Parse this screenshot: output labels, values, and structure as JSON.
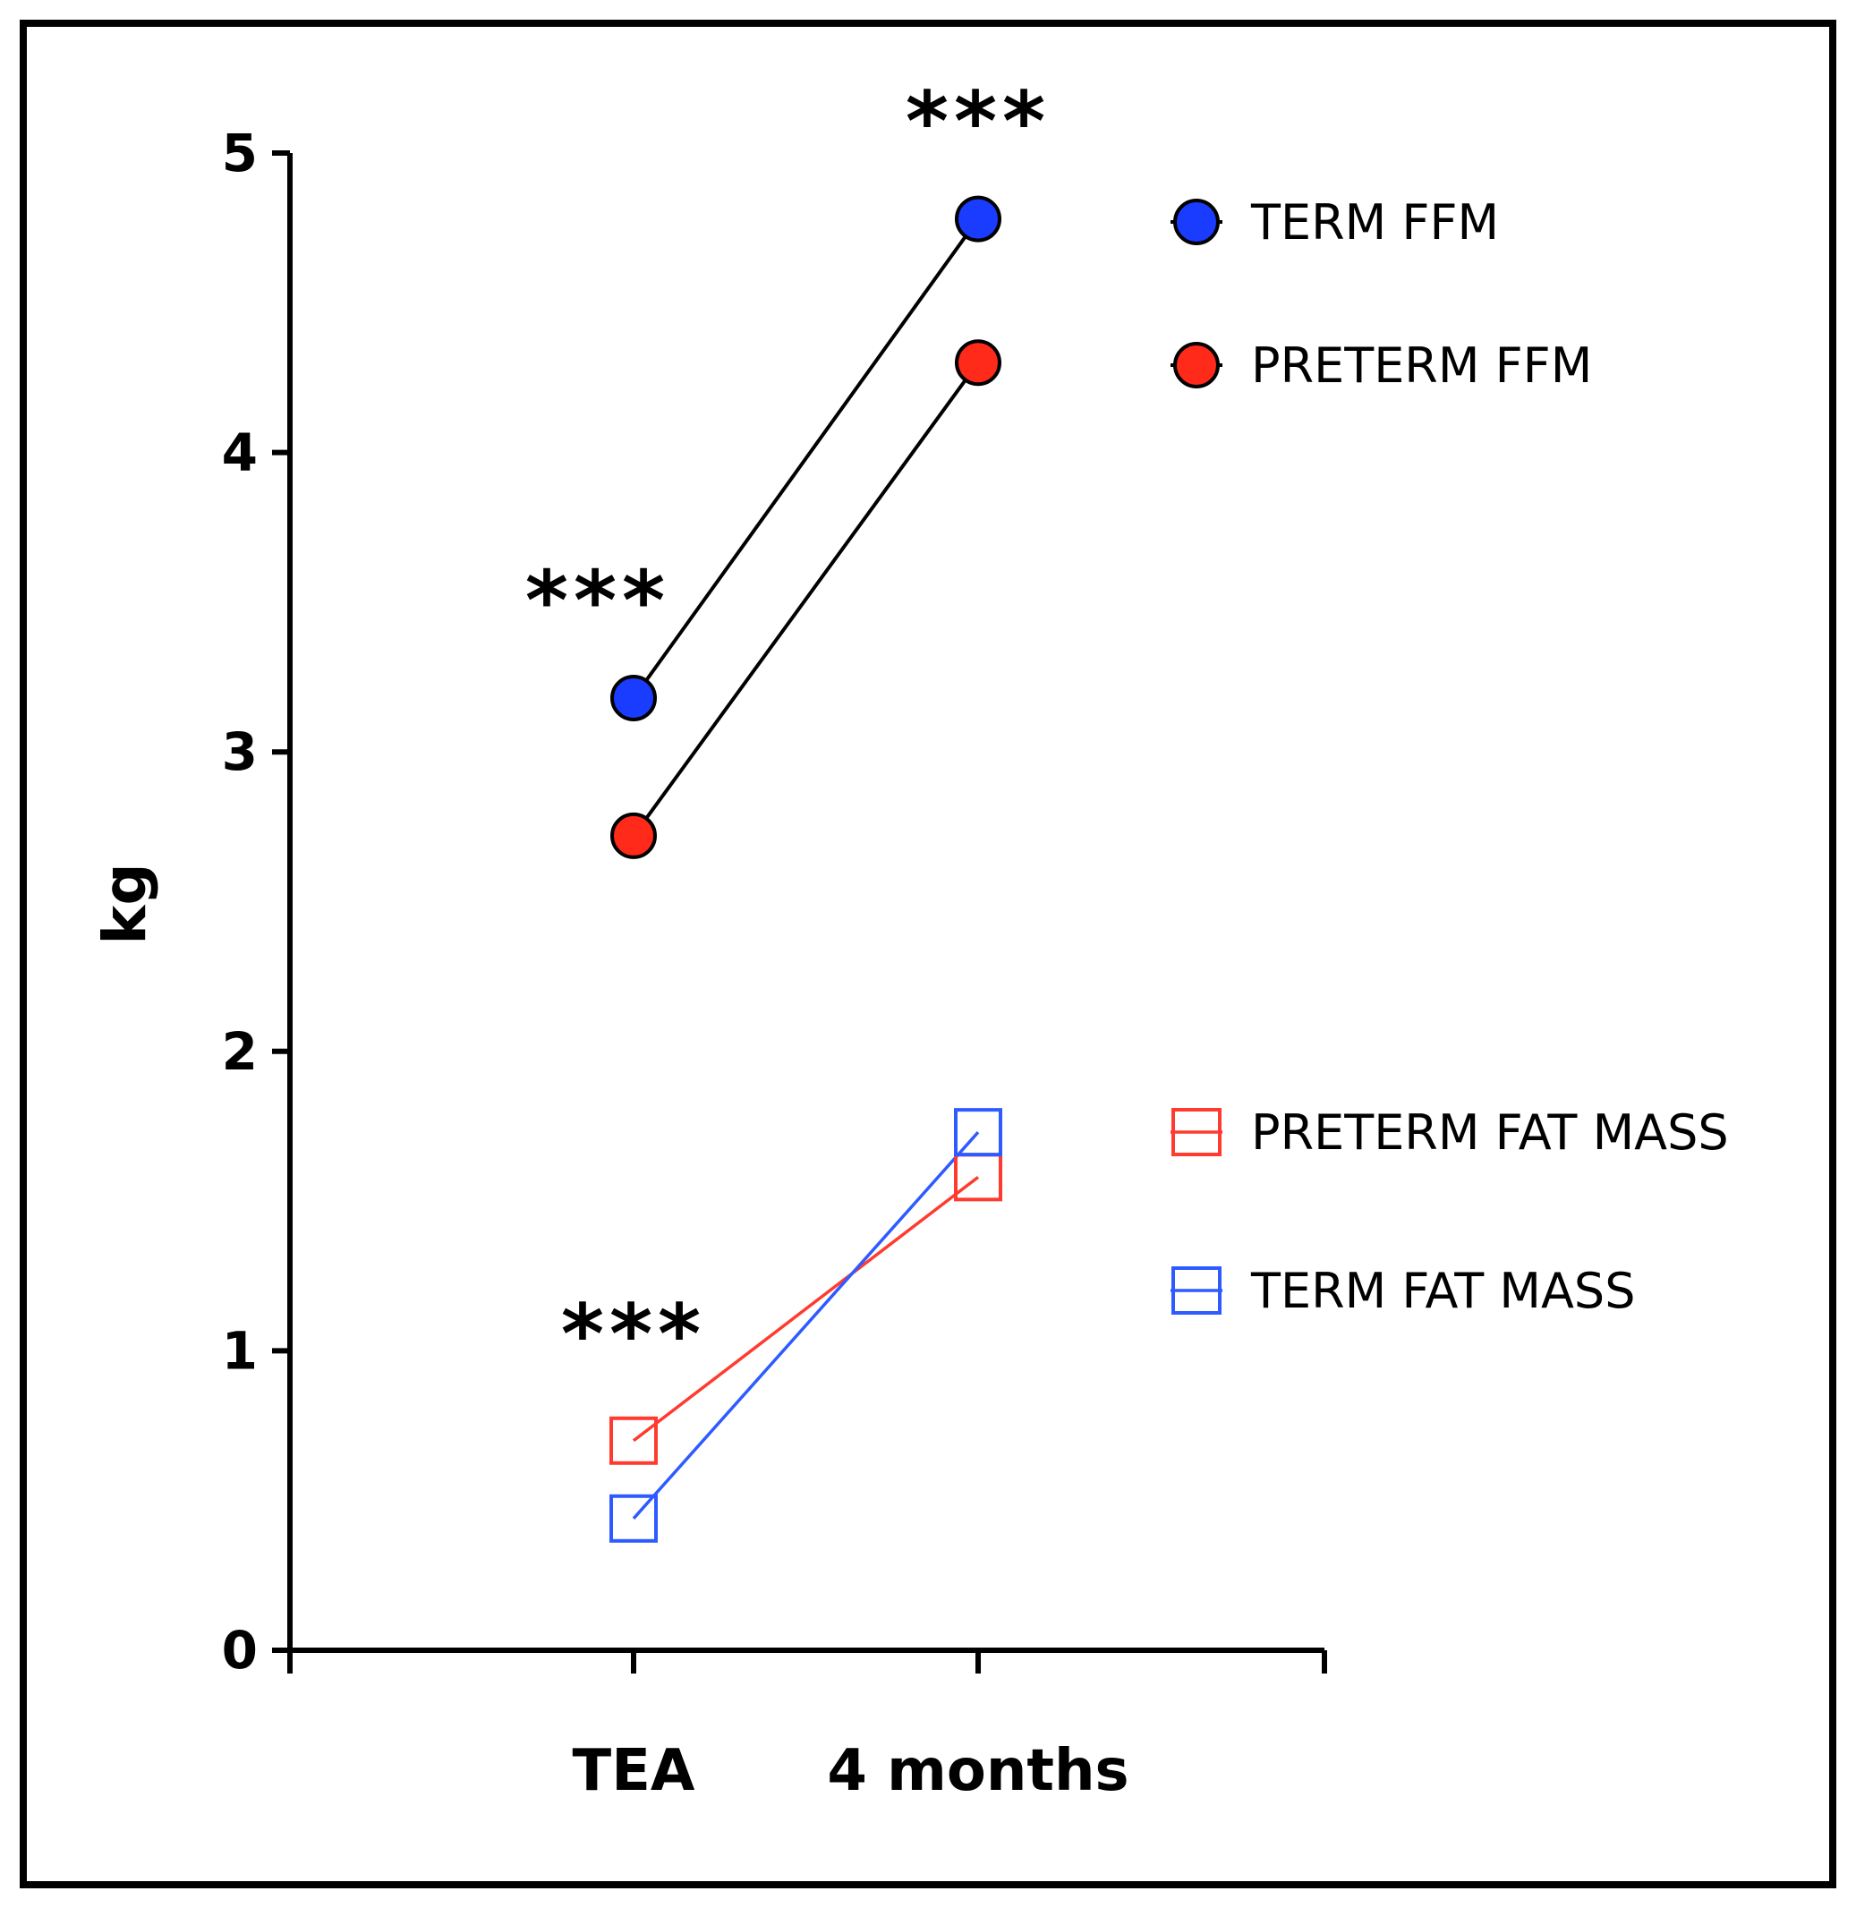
{
  "chart_data": {
    "type": "line",
    "title": "",
    "xlabel": "",
    "ylabel": "kg",
    "categories": [
      "TEA",
      "4 months"
    ],
    "ylim": [
      0,
      5
    ],
    "yticks": [
      0,
      1,
      2,
      3,
      4,
      5
    ],
    "grid": false,
    "legend_position": "right",
    "series": [
      {
        "name": "TERM FFM",
        "values": [
          3.18,
          4.78
        ],
        "color": "#1a3cff",
        "marker": "circle-filled"
      },
      {
        "name": "PRETERM FFM",
        "values": [
          2.72,
          4.3
        ],
        "color": "#ff2a1a",
        "marker": "circle-filled"
      },
      {
        "name": "PRETERM FAT MASS",
        "values": [
          0.7,
          1.58
        ],
        "color": "#ff3b2f",
        "marker": "square-open"
      },
      {
        "name": "TERM FAT MASS",
        "values": [
          0.44,
          1.73
        ],
        "color": "#2e5bff",
        "marker": "square-open"
      }
    ],
    "annotations": [
      {
        "text": "***",
        "category": "4 months",
        "y": 5.1
      },
      {
        "text": "***",
        "category": "TEA",
        "y": 3.5
      },
      {
        "text": "***",
        "category": "TEA",
        "y": 1.05
      }
    ]
  }
}
